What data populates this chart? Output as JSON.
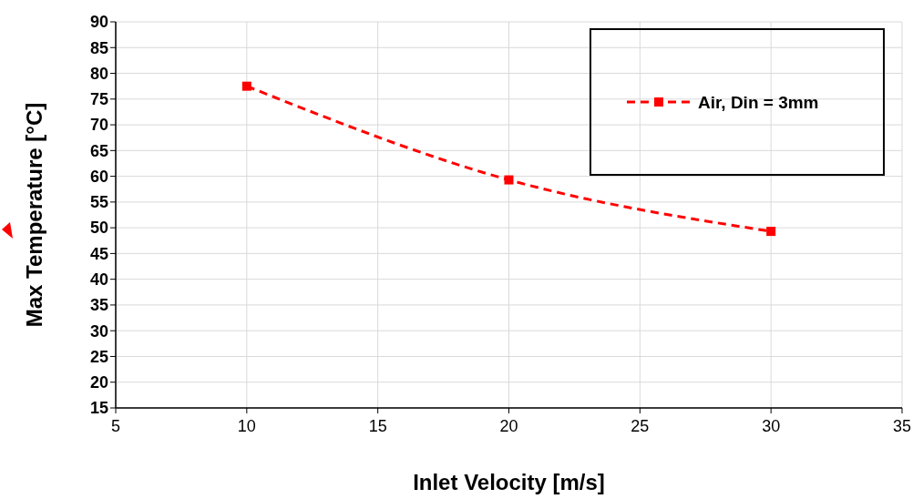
{
  "chart_data": {
    "type": "line",
    "xlabel": "Inlet Velocity [m/s]",
    "ylabel": "Max Temperature  [°C]",
    "x": [
      10,
      20,
      30
    ],
    "series": [
      {
        "name": "Air, Din = 3mm",
        "color": "#ff0000",
        "values": [
          77.5,
          59.3,
          49.3
        ]
      }
    ],
    "xlim": [
      5,
      35
    ],
    "xticks": [
      5,
      10,
      15,
      20,
      25,
      30,
      35
    ],
    "ylim": [
      15,
      90
    ],
    "yticks": [
      15,
      20,
      25,
      30,
      35,
      40,
      45,
      50,
      55,
      60,
      65,
      70,
      75,
      80,
      85,
      90
    ],
    "grid": true,
    "legend": "top right",
    "marker": "square",
    "line_style": "dashed"
  }
}
